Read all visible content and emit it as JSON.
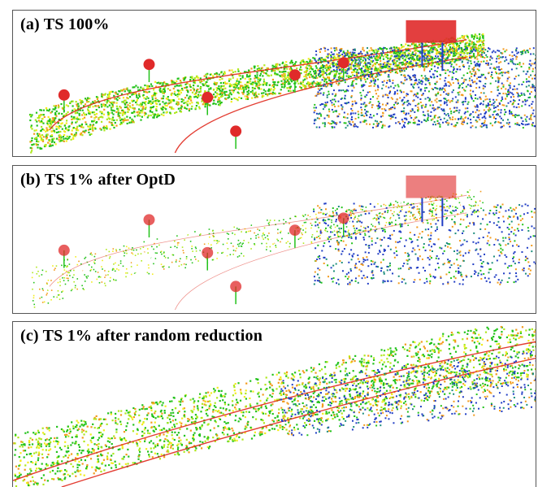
{
  "panels": [
    {
      "label": "(a) TS 100%",
      "density": 1.0
    },
    {
      "label": "(b) TS 1% after OptD",
      "density": 0.45
    },
    {
      "label": "(c) TS 1% after random reduction",
      "density": 0.8
    }
  ],
  "colors": {
    "ground_green": "#22c21a",
    "ground_lime": "#aee81c",
    "ground_yellow": "#f2ec1c",
    "ground_orange": "#f29a1a",
    "line_red": "#e0281c",
    "vegetation_blue": "#1f3cc4",
    "vegetation_teal": "#1a8c7a",
    "sign_red": "#e02a2a",
    "border": "#555555"
  }
}
